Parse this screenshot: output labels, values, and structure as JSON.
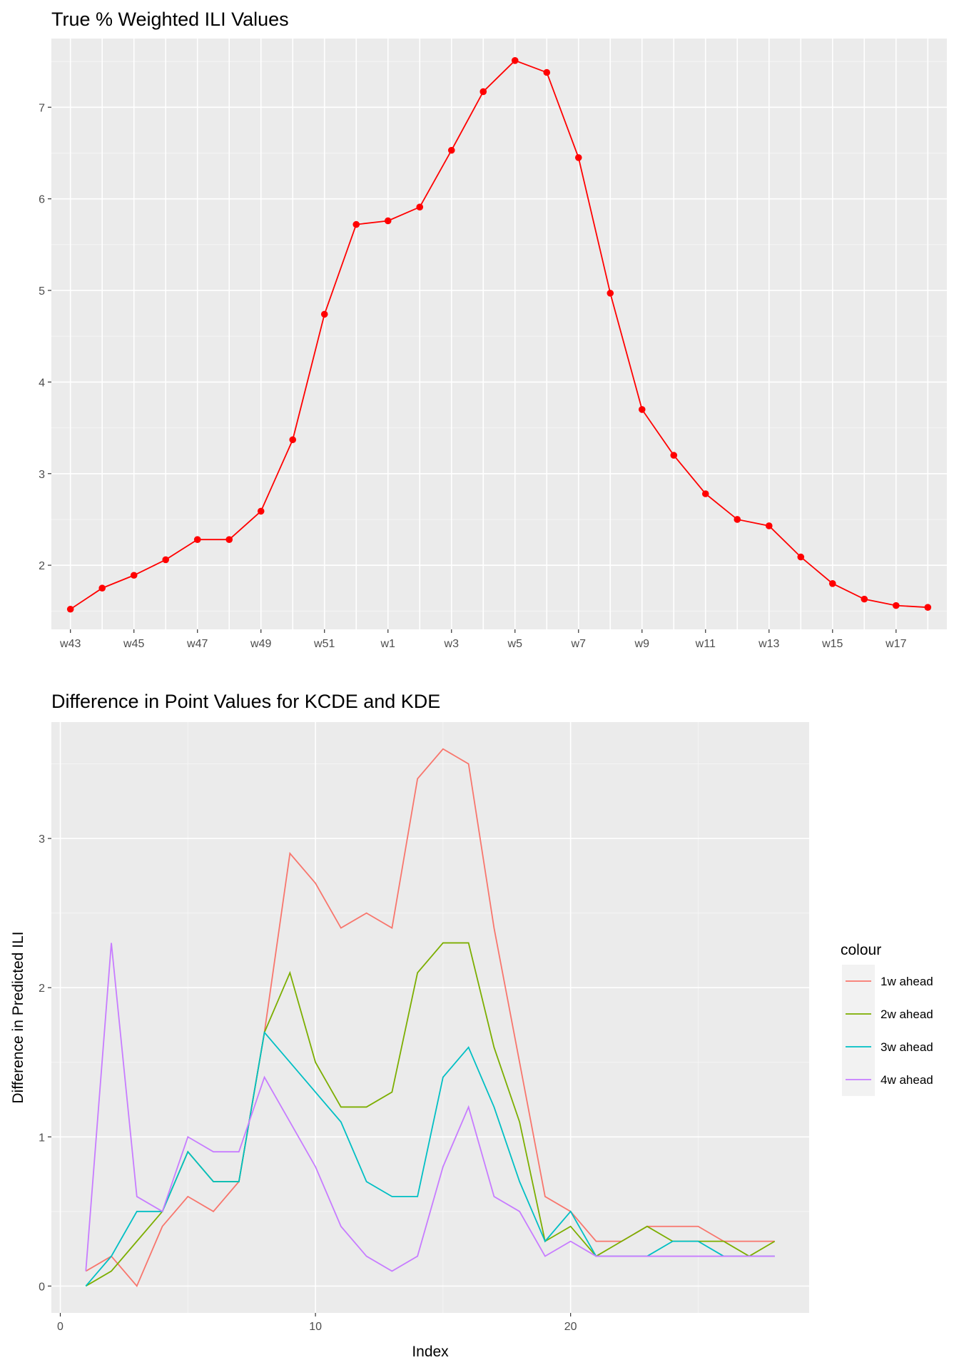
{
  "chart_data": [
    {
      "type": "line",
      "title": "True % Weighted ILI Values",
      "xlabel": "",
      "ylabel": "",
      "categories": [
        "w43",
        "w44",
        "w45",
        "w46",
        "w47",
        "w48",
        "w49",
        "w50",
        "w51",
        "w52",
        "w1",
        "w2",
        "w3",
        "w4",
        "w5",
        "w6",
        "w7",
        "w8",
        "w9",
        "w10",
        "w11",
        "w12",
        "w13",
        "w14",
        "w15",
        "w16",
        "w17",
        "w18"
      ],
      "x_tick_labels": [
        "w43",
        "w45",
        "w47",
        "w49",
        "w51",
        "w1",
        "w3",
        "w5",
        "w7",
        "w9",
        "w11",
        "w13",
        "w15",
        "w17"
      ],
      "y_ticks": [
        2,
        3,
        4,
        5,
        6,
        7
      ],
      "ylim": [
        1.3,
        7.75
      ],
      "grid": true,
      "markers": true,
      "series": [
        {
          "color": "#ff0000",
          "values": [
            1.52,
            1.75,
            1.89,
            2.06,
            2.28,
            2.28,
            2.59,
            3.37,
            4.74,
            5.72,
            5.76,
            5.91,
            6.53,
            7.17,
            7.51,
            7.38,
            6.45,
            4.97,
            3.7,
            3.2,
            2.78,
            2.5,
            2.43,
            2.09,
            1.8,
            1.63,
            1.56,
            1.54
          ]
        }
      ]
    },
    {
      "type": "line",
      "title": "Difference in Point Values for KCDE and KDE",
      "xlabel": "Index",
      "ylabel": "Difference in Predicted ILI",
      "x": [
        1,
        2,
        3,
        4,
        5,
        6,
        7,
        8,
        9,
        10,
        11,
        12,
        13,
        14,
        15,
        16,
        17,
        18,
        19,
        20,
        21,
        22,
        23,
        24,
        25,
        26,
        27,
        28
      ],
      "x_ticks": [
        0,
        10,
        20
      ],
      "y_ticks": [
        0,
        1,
        2,
        3
      ],
      "xlim": [
        -0.35,
        29.35
      ],
      "ylim": [
        -0.18,
        3.78
      ],
      "grid": true,
      "legend": {
        "title": "colour",
        "placement": "right"
      },
      "series": [
        {
          "name": "1w ahead",
          "color": "#f8766d",
          "values": [
            0.1,
            0.2,
            0.0,
            0.4,
            0.6,
            0.5,
            0.7,
            1.7,
            2.9,
            2.7,
            2.4,
            2.5,
            2.4,
            3.4,
            3.6,
            3.5,
            2.4,
            1.5,
            0.6,
            0.5,
            0.3,
            0.3,
            0.4,
            0.4,
            0.4,
            0.3,
            0.3,
            0.3
          ]
        },
        {
          "name": "2w ahead",
          "color": "#7cae00",
          "values": [
            0.0,
            0.1,
            0.3,
            0.5,
            0.9,
            0.7,
            0.7,
            1.7,
            2.1,
            1.5,
            1.2,
            1.2,
            1.3,
            2.1,
            2.3,
            2.3,
            1.6,
            1.1,
            0.3,
            0.4,
            0.2,
            0.3,
            0.4,
            0.3,
            0.3,
            0.3,
            0.2,
            0.3
          ]
        },
        {
          "name": "3w ahead",
          "color": "#00bfc4",
          "values": [
            0.0,
            0.2,
            0.5,
            0.5,
            0.9,
            0.7,
            0.7,
            1.7,
            1.5,
            1.3,
            1.1,
            0.7,
            0.6,
            0.6,
            1.4,
            1.6,
            1.2,
            0.7,
            0.3,
            0.5,
            0.2,
            0.2,
            0.2,
            0.3,
            0.3,
            0.2,
            0.2,
            0.2
          ]
        },
        {
          "name": "4w ahead",
          "color": "#c77cff",
          "values": [
            0.1,
            2.3,
            0.6,
            0.5,
            1.0,
            0.9,
            0.9,
            1.4,
            1.1,
            0.8,
            0.4,
            0.2,
            0.1,
            0.2,
            0.8,
            1.2,
            0.6,
            0.5,
            0.2,
            0.3,
            0.2,
            0.2,
            0.2,
            0.2,
            0.2,
            0.2,
            0.2,
            0.2
          ]
        }
      ]
    }
  ]
}
